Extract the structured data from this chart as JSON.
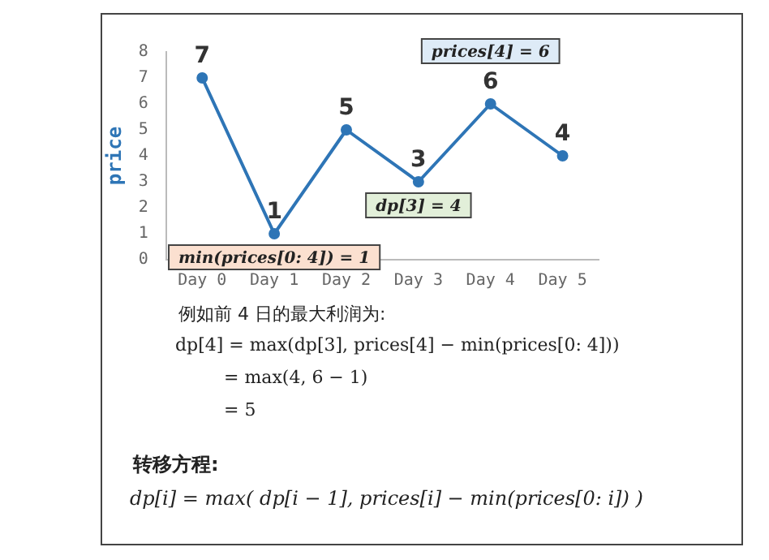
{
  "chart_data": {
    "type": "line",
    "ylabel": "price",
    "categories": [
      "Day 0",
      "Day 1",
      "Day 2",
      "Day 3",
      "Day 4",
      "Day 5"
    ],
    "values": [
      7,
      1,
      5,
      3,
      6,
      4
    ],
    "color": "#2e75b6",
    "ylim": [
      0,
      8
    ],
    "yticks": [
      0,
      1,
      2,
      3,
      4,
      5,
      6,
      7,
      8
    ],
    "grid": false,
    "legend": false,
    "marker": "circle",
    "line_style": "solid",
    "data_labels": true,
    "annotations": [
      {
        "text": "min(prices[0: 4]) = 1",
        "x": "Day 1",
        "y": 1
      },
      {
        "text": "dp[3] = 4",
        "x": "Day 3",
        "y": 3
      },
      {
        "text": "prices[4] = 6",
        "x": "Day 4",
        "y": 6
      },
      "例如前 4 日的最大利润为:",
      "dp[4] = max(dp[3], prices[4] − min(prices[0: 4]))",
      "= max(4, 6 − 1)",
      "= 5",
      "转移方程:",
      "dp[i] = max( dp[i − 1], prices[i] − min(prices[0: i]) )"
    ]
  }
}
